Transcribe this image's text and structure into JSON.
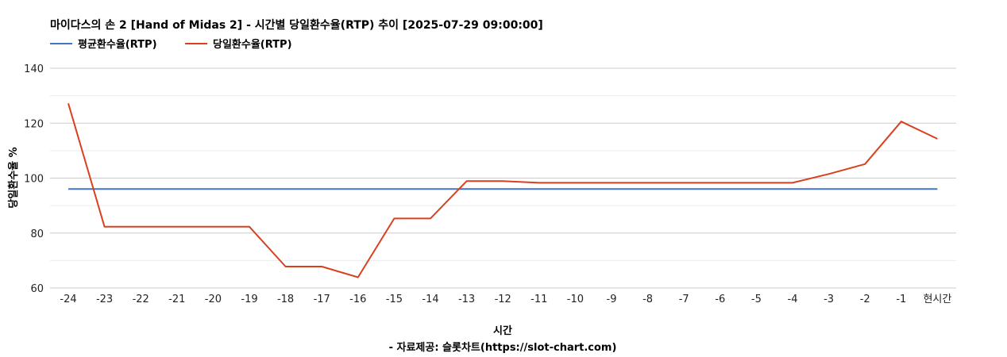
{
  "chart_data": {
    "type": "line",
    "title": "마이다스의 손 2 [Hand of Midas 2] - 시간별 당일환수율(RTP) 추이 [2025-07-29 09:00:00]",
    "xlabel": "시간",
    "ylabel": "당일환수율 %",
    "source": "- 자료제공: 슬롯차트(https://slot-chart.com)",
    "legend_position": "top-left",
    "grid": true,
    "ylim": [
      60,
      140
    ],
    "yticks": [
      "60",
      "80",
      "100",
      "120",
      "140"
    ],
    "categories": [
      "-24",
      "-23",
      "-22",
      "-21",
      "-20",
      "-19",
      "-18",
      "-17",
      "-16",
      "-15",
      "-14",
      "-13",
      "-12",
      "-11",
      "-10",
      "-9",
      "-8",
      "-7",
      "-6",
      "-5",
      "-4",
      "-3",
      "-2",
      "-1",
      "현시간"
    ],
    "series": [
      {
        "name": "평균환수율(RTP)",
        "color": "#4472c4",
        "values": [
          96,
          96,
          96,
          96,
          96,
          96,
          96,
          96,
          96,
          96,
          96,
          96,
          96,
          96,
          96,
          96,
          96,
          96,
          96,
          96,
          96,
          96,
          96,
          96,
          96
        ]
      },
      {
        "name": "당일환수율(RTP)",
        "color": "#d9411e",
        "values": [
          127.2,
          82.3,
          82.3,
          82.3,
          82.3,
          82.3,
          67.8,
          67.8,
          63.9,
          85.3,
          85.3,
          98.9,
          98.9,
          98.3,
          98.3,
          98.3,
          98.3,
          98.3,
          98.3,
          98.3,
          98.3,
          101.5,
          105.1,
          120.6,
          114.3
        ]
      }
    ]
  }
}
